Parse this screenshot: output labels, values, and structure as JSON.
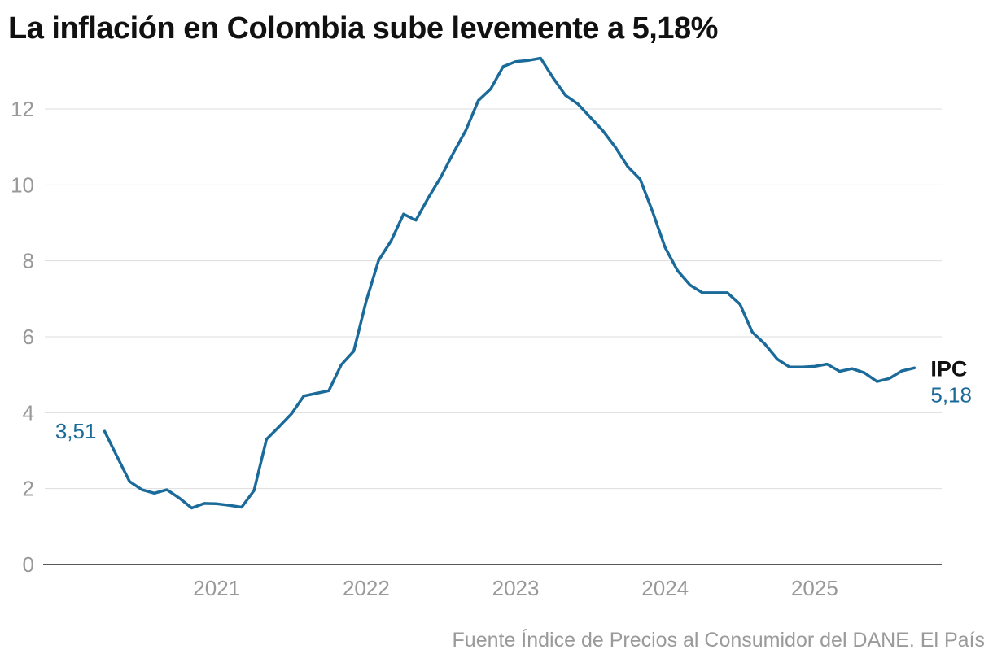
{
  "title": "La inflación en Colombia sube levemente a 5,18%",
  "source": "Fuente Índice de Precios al Consumidor del DANE. El País",
  "colors": {
    "series": "#1a6a9a",
    "grid": "#dddddd",
    "axis": "#222222",
    "tick": "#999999"
  },
  "chart_data": {
    "type": "line",
    "title": "La inflación en Colombia sube levemente a 5,18%",
    "xlabel": "",
    "ylabel": "",
    "ylim": [
      0,
      13.5
    ],
    "xlim": [
      2019.85,
      2025.85
    ],
    "y_ticks": [
      0,
      2,
      4,
      6,
      8,
      10,
      12
    ],
    "y_tick_labels": [
      "0",
      "2",
      "4",
      "6",
      "8",
      "10",
      "12"
    ],
    "x_ticks": [
      2021,
      2022,
      2023,
      2024,
      2025
    ],
    "x_tick_labels": [
      "2021",
      "2022",
      "2023",
      "2024",
      "2025"
    ],
    "grid": true,
    "series": [
      {
        "name": "IPC",
        "start_label": "3,51",
        "end_label": "5,18",
        "x": [
          2020.25,
          2020.333,
          2020.417,
          2020.5,
          2020.583,
          2020.667,
          2020.75,
          2020.833,
          2020.917,
          2021.0,
          2021.083,
          2021.167,
          2021.25,
          2021.333,
          2021.417,
          2021.5,
          2021.583,
          2021.667,
          2021.75,
          2021.833,
          2021.917,
          2022.0,
          2022.083,
          2022.167,
          2022.25,
          2022.333,
          2022.417,
          2022.5,
          2022.583,
          2022.667,
          2022.75,
          2022.833,
          2022.917,
          2023.0,
          2023.083,
          2023.167,
          2023.25,
          2023.333,
          2023.417,
          2023.5,
          2023.583,
          2023.667,
          2023.75,
          2023.833,
          2023.917,
          2024.0,
          2024.083,
          2024.167,
          2024.25,
          2024.333,
          2024.417,
          2024.5,
          2024.583,
          2024.667,
          2024.75,
          2024.833,
          2024.917,
          2025.0,
          2025.083,
          2025.167,
          2025.25,
          2025.333,
          2025.417,
          2025.5,
          2025.583,
          2025.667
        ],
        "values": [
          3.51,
          2.85,
          2.19,
          1.97,
          1.88,
          1.97,
          1.75,
          1.49,
          1.61,
          1.6,
          1.56,
          1.51,
          1.95,
          3.3,
          3.63,
          3.97,
          4.44,
          4.51,
          4.58,
          5.26,
          5.62,
          6.94,
          8.01,
          8.53,
          9.23,
          9.07,
          9.67,
          10.21,
          10.84,
          11.44,
          12.22,
          12.53,
          13.12,
          13.25,
          13.28,
          13.34,
          12.82,
          12.36,
          12.13,
          11.78,
          11.43,
          10.99,
          10.48,
          10.15,
          9.28,
          8.35,
          7.74,
          7.36,
          7.16,
          7.16,
          7.16,
          6.86,
          6.12,
          5.81,
          5.41,
          5.2,
          5.2,
          5.22,
          5.28,
          5.09,
          5.16,
          5.05,
          4.82,
          4.9,
          5.1,
          5.18
        ]
      }
    ]
  }
}
